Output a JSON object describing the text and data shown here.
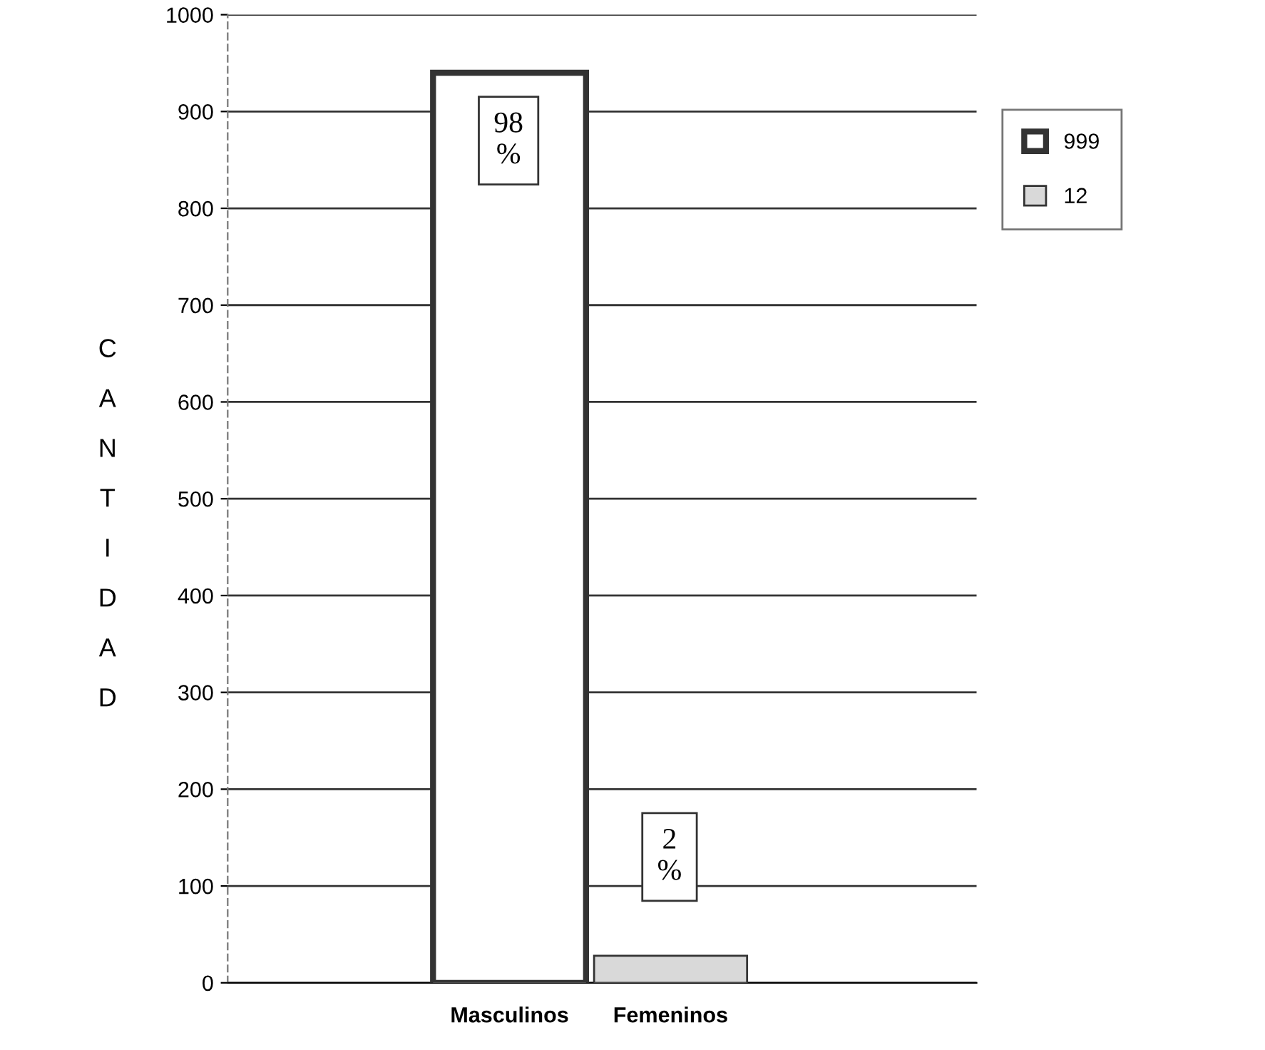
{
  "chart_data": {
    "type": "bar",
    "categories": [
      "Masculinos",
      "Femeninos"
    ],
    "series": [
      {
        "name": "999",
        "color": "#ffffff",
        "values": [
          940,
          null
        ]
      },
      {
        "name": "12",
        "color": "#d9d9d9",
        "values": [
          null,
          28
        ]
      }
    ],
    "ylabel": "CANTIDAD",
    "ylim": [
      0,
      1000
    ],
    "yticks": [
      0,
      100,
      200,
      300,
      400,
      500,
      600,
      700,
      800,
      900,
      1000
    ],
    "grid": "y",
    "legend": "right",
    "annotations": [
      "98\n%",
      "2\n%"
    ]
  }
}
